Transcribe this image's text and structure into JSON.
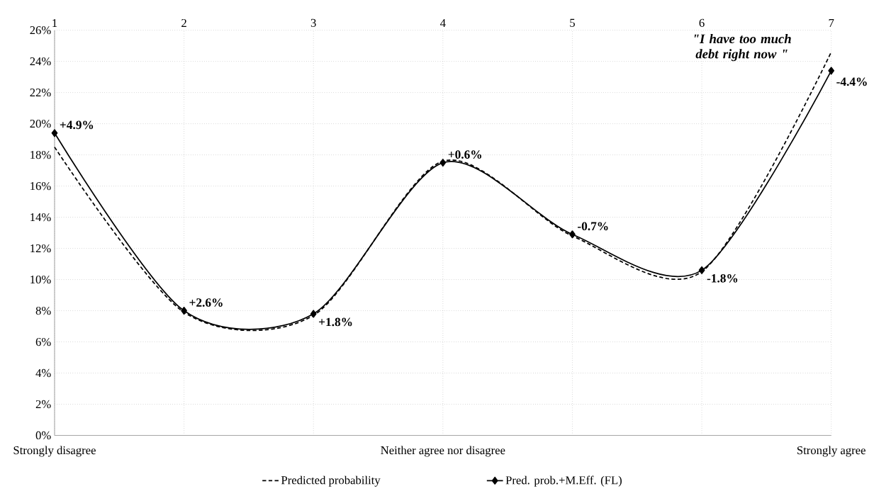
{
  "chart_data": {
    "type": "line",
    "title": "\"I have too much debt right now \"",
    "categories": [
      "1",
      "2",
      "3",
      "4",
      "5",
      "6",
      "7"
    ],
    "ylim": [
      0,
      26
    ],
    "yticks": [
      {
        "value": 0,
        "label": "0%"
      },
      {
        "value": 2,
        "label": "2%"
      },
      {
        "value": 4,
        "label": "4%"
      },
      {
        "value": 6,
        "label": "6%"
      },
      {
        "value": 8,
        "label": "8%"
      },
      {
        "value": 10,
        "label": "10%"
      },
      {
        "value": 12,
        "label": "12%"
      },
      {
        "value": 14,
        "label": "14%"
      },
      {
        "value": 16,
        "label": "16%"
      },
      {
        "value": 18,
        "label": "18%"
      },
      {
        "value": 20,
        "label": "20%"
      },
      {
        "value": 22,
        "label": "22%"
      },
      {
        "value": 24,
        "label": "24%"
      },
      {
        "value": 26,
        "label": "26%"
      }
    ],
    "grid": true,
    "legend": "bottom",
    "series": [
      {
        "name": "Predicted probability",
        "color": "#000000",
        "line_style": "dashed",
        "marker": "none",
        "values": [
          18.5,
          7.9,
          7.7,
          17.6,
          12.8,
          10.5,
          24.6
        ]
      },
      {
        "name": "Pred. prob.+M.Eff. (FL)",
        "color": "#000000",
        "line_style": "solid",
        "marker": "diamond",
        "values": [
          19.4,
          8.0,
          7.8,
          17.5,
          12.9,
          10.6,
          23.4
        ]
      }
    ],
    "annotations": [
      {
        "text": "+4.9%",
        "x": "1",
        "y": 19.4
      },
      {
        "text": "+2.6%",
        "x": "2",
        "y": 8.0
      },
      {
        "text": "+1.8%",
        "x": "3",
        "y": 7.8
      },
      {
        "text": "+0.6%",
        "x": "4",
        "y": 17.5
      },
      {
        "text": "-0.7%",
        "x": "5",
        "y": 12.9
      },
      {
        "text": "-1.8%",
        "x": "6",
        "y": 10.6
      },
      {
        "text": "-4.4%",
        "x": "7",
        "y": 23.4
      },
      "Strongly disagree",
      "Neither agree nor disagree",
      "Strongly agree"
    ]
  }
}
